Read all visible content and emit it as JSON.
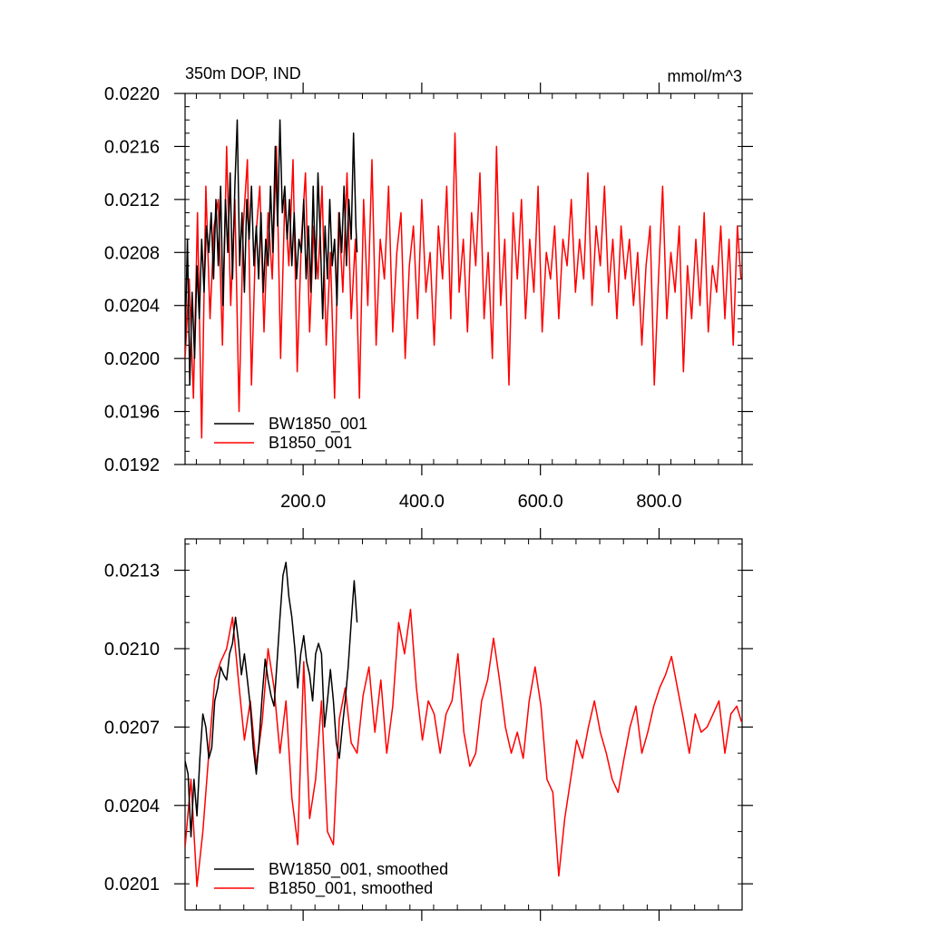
{
  "chart_data": [
    {
      "type": "line",
      "title_left": "350m DOP, IND",
      "title_right": "mmol/m^3",
      "xlim": [
        1,
        940
      ],
      "ylim": [
        0.0192,
        0.022
      ],
      "xticks": [
        200,
        400,
        600,
        800
      ],
      "xtick_labels": [
        "200.0",
        "400.0",
        "600.0",
        "800.0"
      ],
      "yticks": [
        0.0192,
        0.0196,
        0.02,
        0.0204,
        0.0208,
        0.0212,
        0.0216,
        0.022
      ],
      "ytick_labels": [
        "0.0192",
        "0.0196",
        "0.0200",
        "0.0204",
        "0.0208",
        "0.0212",
        "0.0216",
        "0.0220"
      ],
      "legend_position": "bottom-left",
      "series": [
        {
          "name": "BW1850_001",
          "color": "#000000",
          "x": [
            1,
            5,
            9,
            13,
            17,
            21,
            25,
            29,
            33,
            37,
            41,
            45,
            49,
            53,
            57,
            61,
            65,
            69,
            73,
            77,
            81,
            85,
            89,
            93,
            97,
            101,
            105,
            109,
            113,
            117,
            121,
            125,
            129,
            133,
            137,
            141,
            145,
            149,
            153,
            157,
            161,
            165,
            169,
            173,
            177,
            181,
            185,
            189,
            193,
            197,
            201,
            205,
            209,
            213,
            217,
            221,
            225,
            229,
            233,
            237,
            241,
            245,
            249,
            253,
            257,
            261,
            265,
            269,
            273,
            277,
            281,
            285,
            289,
            291
          ],
          "values": [
            0.0201,
            0.0209,
            0.0198,
            0.0205,
            0.02,
            0.0207,
            0.0203,
            0.0209,
            0.0205,
            0.021,
            0.0208,
            0.0211,
            0.0206,
            0.0212,
            0.0207,
            0.0213,
            0.0204,
            0.0212,
            0.0208,
            0.0214,
            0.0206,
            0.0213,
            0.0218,
            0.0207,
            0.0211,
            0.0205,
            0.0212,
            0.0209,
            0.0213,
            0.0207,
            0.021,
            0.0206,
            0.0211,
            0.0205,
            0.0209,
            0.0207,
            0.0213,
            0.0208,
            0.0216,
            0.021,
            0.0218,
            0.0211,
            0.0213,
            0.0209,
            0.0212,
            0.0207,
            0.0211,
            0.0206,
            0.0209,
            0.0208,
            0.0212,
            0.0206,
            0.021,
            0.0205,
            0.0213,
            0.0206,
            0.0214,
            0.0209,
            0.0203,
            0.021,
            0.0206,
            0.0212,
            0.0207,
            0.0209,
            0.0204,
            0.0211,
            0.0208,
            0.0213,
            0.0207,
            0.0212,
            0.0209,
            0.0217,
            0.021,
            0.0208
          ]
        },
        {
          "name": "B1850_001",
          "color": "#ff0000",
          "x": [
            1,
            8,
            15,
            22,
            29,
            36,
            43,
            50,
            57,
            64,
            71,
            78,
            85,
            92,
            99,
            106,
            113,
            120,
            127,
            134,
            141,
            148,
            155,
            162,
            169,
            176,
            183,
            190,
            197,
            204,
            211,
            218,
            225,
            232,
            239,
            246,
            253,
            260,
            267,
            274,
            281,
            288,
            295,
            302,
            309,
            316,
            323,
            330,
            337,
            344,
            351,
            358,
            365,
            372,
            379,
            386,
            393,
            400,
            407,
            414,
            421,
            428,
            435,
            442,
            449,
            456,
            463,
            470,
            477,
            484,
            491,
            498,
            505,
            512,
            519,
            526,
            533,
            540,
            547,
            554,
            561,
            568,
            575,
            582,
            589,
            596,
            603,
            610,
            617,
            624,
            631,
            638,
            645,
            652,
            659,
            666,
            673,
            680,
            687,
            694,
            701,
            708,
            715,
            722,
            729,
            736,
            743,
            750,
            757,
            764,
            771,
            778,
            785,
            792,
            799,
            806,
            813,
            820,
            827,
            834,
            841,
            848,
            855,
            862,
            869,
            876,
            883,
            890,
            897,
            904,
            911,
            918,
            925,
            932,
            938
          ],
          "values": [
            0.02,
            0.0206,
            0.0197,
            0.0211,
            0.0194,
            0.0213,
            0.0203,
            0.021,
            0.0212,
            0.0201,
            0.0216,
            0.0204,
            0.0212,
            0.0196,
            0.021,
            0.0215,
            0.0198,
            0.0209,
            0.0213,
            0.0202,
            0.0211,
            0.0206,
            0.0216,
            0.02,
            0.0212,
            0.0207,
            0.0215,
            0.0199,
            0.0209,
            0.0214,
            0.0202,
            0.021,
            0.0206,
            0.0213,
            0.0201,
            0.0208,
            0.0197,
            0.0211,
            0.0205,
            0.0214,
            0.0203,
            0.0209,
            0.0197,
            0.0212,
            0.0204,
            0.0215,
            0.0201,
            0.0209,
            0.0206,
            0.0213,
            0.0202,
            0.0208,
            0.0211,
            0.02,
            0.0207,
            0.021,
            0.0203,
            0.0212,
            0.0205,
            0.0208,
            0.0201,
            0.021,
            0.0206,
            0.0213,
            0.0203,
            0.0217,
            0.0205,
            0.0209,
            0.0202,
            0.0211,
            0.0207,
            0.0214,
            0.0203,
            0.0208,
            0.02,
            0.0216,
            0.0204,
            0.0209,
            0.0198,
            0.0211,
            0.0206,
            0.0212,
            0.0203,
            0.0209,
            0.0205,
            0.0213,
            0.0202,
            0.0208,
            0.0206,
            0.021,
            0.0203,
            0.0209,
            0.0207,
            0.0212,
            0.0205,
            0.0209,
            0.0206,
            0.0214,
            0.0204,
            0.021,
            0.0207,
            0.0213,
            0.0205,
            0.0209,
            0.0203,
            0.021,
            0.0206,
            0.0209,
            0.0204,
            0.0208,
            0.0201,
            0.0207,
            0.021,
            0.0198,
            0.0206,
            0.0213,
            0.0203,
            0.0208,
            0.0205,
            0.021,
            0.0199,
            0.0207,
            0.0203,
            0.0209,
            0.0204,
            0.0211,
            0.0202,
            0.0207,
            0.0205,
            0.021,
            0.0203,
            0.0209,
            0.0201,
            0.021,
            0.0206
          ]
        }
      ]
    },
    {
      "type": "line",
      "xlim": [
        1,
        940
      ],
      "ylim": [
        0.02,
        0.02142
      ],
      "yticks": [
        0.0201,
        0.0204,
        0.0207,
        0.021,
        0.0213
      ],
      "ytick_labels": [
        "0.0201",
        "0.0204",
        "0.0207",
        "0.0210",
        "0.0213"
      ],
      "xticks": [
        200,
        400,
        600,
        800
      ],
      "legend_position": "bottom-left",
      "series": [
        {
          "name": "BW1850_001, smoothed",
          "color": "#000000",
          "x": [
            1,
            6,
            11,
            16,
            21,
            26,
            31,
            36,
            41,
            46,
            51,
            56,
            61,
            66,
            71,
            76,
            81,
            86,
            91,
            96,
            101,
            106,
            111,
            116,
            121,
            126,
            131,
            136,
            141,
            146,
            151,
            156,
            161,
            166,
            171,
            176,
            181,
            186,
            191,
            196,
            201,
            206,
            211,
            216,
            221,
            226,
            231,
            236,
            241,
            246,
            251,
            256,
            261,
            266,
            271,
            276,
            281,
            286,
            291
          ],
          "values": [
            0.02057,
            0.02052,
            0.02028,
            0.0205,
            0.02036,
            0.02058,
            0.02075,
            0.0207,
            0.02058,
            0.02062,
            0.0208,
            0.02085,
            0.02093,
            0.0209,
            0.02088,
            0.02098,
            0.02102,
            0.02112,
            0.02103,
            0.0209,
            0.02098,
            0.02088,
            0.02078,
            0.02062,
            0.02052,
            0.02065,
            0.02082,
            0.02096,
            0.02088,
            0.02082,
            0.02078,
            0.02095,
            0.02112,
            0.02128,
            0.02133,
            0.0212,
            0.02112,
            0.021,
            0.02085,
            0.02098,
            0.02105,
            0.02095,
            0.0209,
            0.0208,
            0.02098,
            0.02102,
            0.02098,
            0.0207,
            0.0208,
            0.02092,
            0.0208,
            0.02064,
            0.02058,
            0.0207,
            0.0208,
            0.02093,
            0.0211,
            0.02126,
            0.0211
          ]
        },
        {
          "name": "B1850_001, smoothed",
          "color": "#ff0000",
          "x": [
            1,
            11,
            21,
            31,
            41,
            51,
            61,
            71,
            81,
            91,
            101,
            111,
            121,
            131,
            141,
            151,
            161,
            171,
            181,
            191,
            201,
            211,
            221,
            231,
            241,
            251,
            261,
            271,
            281,
            291,
            301,
            311,
            321,
            331,
            341,
            351,
            361,
            371,
            381,
            391,
            401,
            411,
            421,
            431,
            441,
            451,
            461,
            471,
            481,
            491,
            501,
            511,
            521,
            531,
            541,
            551,
            561,
            571,
            581,
            591,
            601,
            611,
            621,
            631,
            641,
            651,
            661,
            671,
            681,
            691,
            701,
            711,
            721,
            731,
            741,
            751,
            761,
            771,
            781,
            791,
            801,
            811,
            821,
            831,
            841,
            851,
            861,
            871,
            881,
            891,
            901,
            911,
            921,
            931,
            939
          ],
          "values": [
            0.02024,
            0.0205,
            0.02009,
            0.0203,
            0.0206,
            0.02088,
            0.02095,
            0.021,
            0.02112,
            0.02088,
            0.02065,
            0.0208,
            0.02055,
            0.02072,
            0.021,
            0.02085,
            0.0206,
            0.0208,
            0.02043,
            0.02025,
            0.02095,
            0.02035,
            0.0205,
            0.0208,
            0.0203,
            0.02025,
            0.02073,
            0.02085,
            0.02064,
            0.0206,
            0.02082,
            0.02093,
            0.02068,
            0.02088,
            0.0206,
            0.02078,
            0.0211,
            0.02098,
            0.02115,
            0.02085,
            0.02065,
            0.0208,
            0.02075,
            0.0206,
            0.02075,
            0.0208,
            0.02098,
            0.02068,
            0.02055,
            0.0206,
            0.0208,
            0.02088,
            0.02104,
            0.02088,
            0.0207,
            0.0206,
            0.02068,
            0.02058,
            0.0208,
            0.02093,
            0.02078,
            0.0205,
            0.02045,
            0.02013,
            0.02035,
            0.0205,
            0.02065,
            0.02058,
            0.0207,
            0.0208,
            0.02068,
            0.0206,
            0.0205,
            0.02045,
            0.02058,
            0.0207,
            0.02078,
            0.0206,
            0.02068,
            0.02078,
            0.02085,
            0.0209,
            0.02097,
            0.02085,
            0.02073,
            0.0206,
            0.02075,
            0.02068,
            0.0207,
            0.02075,
            0.0208,
            0.0206,
            0.02075,
            0.02078,
            0.02072
          ]
        }
      ]
    }
  ]
}
